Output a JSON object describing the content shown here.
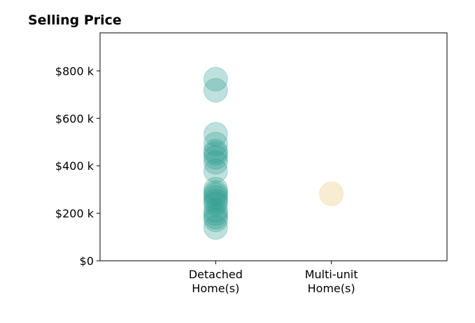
{
  "chart_data": {
    "type": "scatter",
    "title": "Selling Price",
    "categories": [
      "Detached\nHome(s)",
      "Multi-unit\nHome(s)"
    ],
    "x_range": [
      -1,
      2
    ],
    "ylim": [
      0,
      960000
    ],
    "yticks": [
      0,
      200000,
      400000,
      600000,
      800000
    ],
    "ytick_labels": [
      "$0",
      "$200 k",
      "$400 k",
      "$600 k",
      "$800 k"
    ],
    "grid": false,
    "series": [
      {
        "category_index": 0,
        "color": "#2a9d8f",
        "opacity": 0.3,
        "values": [
          765000,
          718000,
          533000,
          492000,
          462000,
          452000,
          436000,
          414000,
          378000,
          302000,
          288000,
          278000,
          266000,
          252000,
          241000,
          212000,
          198000,
          184000,
          172000,
          140000
        ]
      },
      {
        "category_index": 1,
        "color": "#e9c46a",
        "opacity": 0.3,
        "values": [
          282000
        ]
      }
    ]
  }
}
